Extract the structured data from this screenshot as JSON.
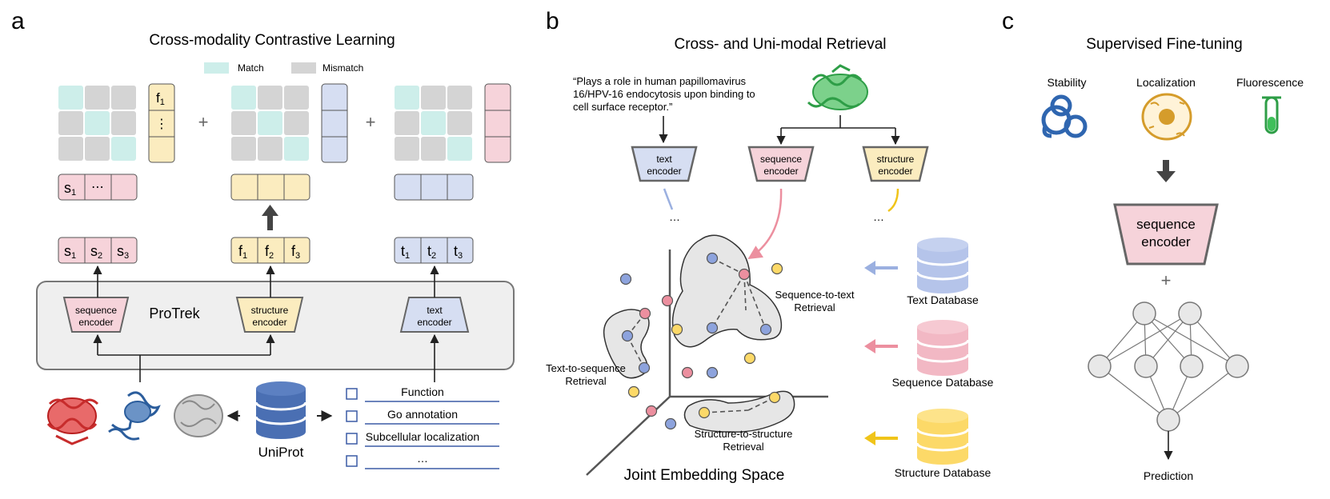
{
  "panels": {
    "a": {
      "letter": "a",
      "title": "Cross-modality Contrastive Learning",
      "legend": {
        "match": "Match",
        "mismatch": "Mismatch"
      },
      "plus": "+",
      "f_tokens": [
        "f",
        "1",
        "⋮"
      ],
      "s_tokens_top": [
        "s",
        "1",
        "⋯"
      ],
      "s_tokens": [
        [
          "s",
          "1"
        ],
        [
          "s",
          "2"
        ],
        [
          "s",
          "3"
        ]
      ],
      "f_tokens_row": [
        [
          "f",
          "1"
        ],
        [
          "f",
          "2"
        ],
        [
          "f",
          "3"
        ]
      ],
      "t_tokens": [
        [
          "t",
          "1"
        ],
        [
          "t",
          "2"
        ],
        [
          "t",
          "3"
        ]
      ],
      "protrek_label": "ProTrek",
      "seq_encoder": [
        "sequence",
        "encoder"
      ],
      "struct_encoder": [
        "structure",
        "encoder"
      ],
      "text_encoder": [
        "text",
        "encoder"
      ],
      "uniprot_label": "UniProt",
      "annotations": [
        "Function",
        "Go annotation",
        "Subcellular localization",
        "…"
      ]
    },
    "b": {
      "letter": "b",
      "title": "Cross- and Uni-modal Retrieval",
      "quote": [
        "“Plays a role in human papillomavirus",
        "16/HPV-16 endocytosis upon binding to",
        "cell surface receptor.”"
      ],
      "text_encoder": [
        "text",
        "encoder"
      ],
      "seq_encoder": [
        "sequence",
        "encoder"
      ],
      "struct_encoder": [
        "structure",
        "encoder"
      ],
      "ellipsis": "…",
      "seq_to_text": [
        "Sequence-to-text",
        "Retrieval"
      ],
      "text_to_seq": [
        "Text-to-sequence",
        "Retrieval"
      ],
      "struct_to_struct": [
        "Structure-to-structure",
        "Retrieval"
      ],
      "space_label": "Joint Embedding Space",
      "databases": [
        "Text Database",
        "Sequence Database",
        "Structure Database"
      ]
    },
    "c": {
      "letter": "c",
      "title": "Supervised Fine-tuning",
      "tasks": [
        "Stability",
        "Localization",
        "Fluorescence"
      ],
      "seq_encoder": [
        "sequence",
        "encoder"
      ],
      "plus": "+",
      "prediction": "Prediction"
    }
  },
  "colors": {
    "match": "#cdeeea",
    "mismatch": "#d4d4d4",
    "pink": "#f6d3da",
    "yellow": "#fbecbf",
    "blue": "#d6def2",
    "protrek_bg": "#efefef",
    "db_blue": "#b5c4ea",
    "db_pink": "#f2b8c4",
    "db_yellow": "#fcd968",
    "uniprot": "#4a6fb3"
  }
}
